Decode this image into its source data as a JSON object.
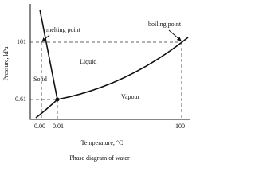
{
  "diagram": {
    "title": "Phase diagram of water",
    "y_axis_label": "Pressure, kPa",
    "x_axis_label": "Temperature, °C",
    "y_ticks": [
      "101",
      "0.61"
    ],
    "x_ticks": [
      "0.00",
      "0.01",
      "100"
    ],
    "regions": [
      "Solid",
      "Liquid",
      "Vapour"
    ],
    "annotations": [
      "melting point",
      "boiling point"
    ]
  }
}
